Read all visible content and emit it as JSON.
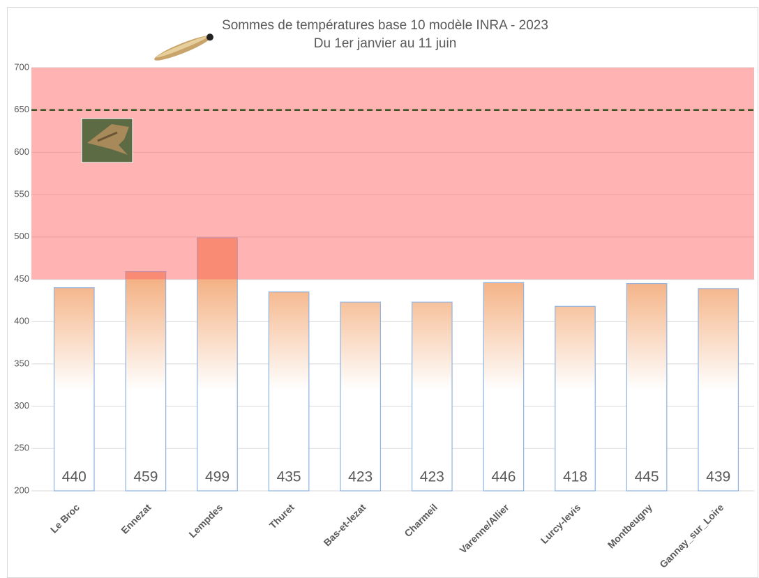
{
  "chart_data": {
    "type": "bar",
    "title": "Sommes de températures base 10 modèle INRA - 2023",
    "subtitle": "Du 1er janvier au 11 juin",
    "categories": [
      "Le Broc",
      "Ennezat",
      "Lempdes",
      "Thuret",
      "Bas-et-lezat",
      "Charmeil",
      "Varenne/Allier",
      "Lurcy-levis",
      "Montbeugny",
      "Gannay_sur_Loire"
    ],
    "values": [
      440,
      459,
      499,
      435,
      423,
      423,
      446,
      418,
      445,
      439
    ],
    "color": "#f4b183",
    "edge_color": "#8db4e2",
    "ylim": [
      200,
      700
    ],
    "yticks": [
      200,
      250,
      300,
      350,
      400,
      450,
      500,
      550,
      600,
      650,
      700
    ],
    "grid": true,
    "reference_band": {
      "from": 450,
      "to": 700,
      "color": "#ff6464"
    },
    "reference_line": {
      "value": 650,
      "color": "#375623"
    }
  }
}
